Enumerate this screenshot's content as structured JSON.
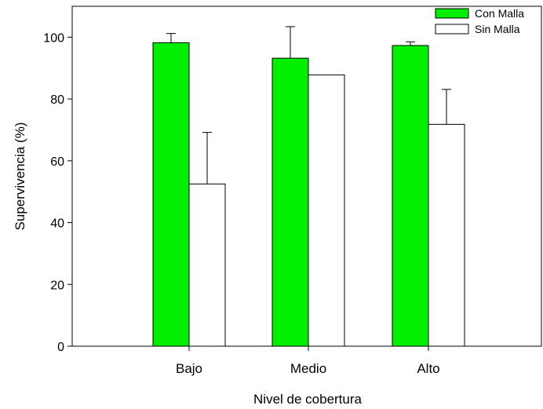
{
  "chart_data": {
    "type": "bar",
    "title": "",
    "xlabel": "Nivel de cobertura",
    "ylabel": "Supervivencia (%)",
    "categories": [
      "Bajo",
      "Medio",
      "Alto"
    ],
    "ylim": [
      0,
      110
    ],
    "yticks": [
      0,
      20,
      40,
      60,
      80,
      100
    ],
    "grid": false,
    "legend_position": "top-right",
    "series": [
      {
        "name": "Con Malla",
        "color": "#00ee00",
        "values": [
          98.2,
          93.2,
          97.3
        ],
        "error": [
          3.0,
          10.2,
          1.2
        ]
      },
      {
        "name": "Sin Malla",
        "color": "#ffffff",
        "values": [
          52.5,
          87.8,
          71.8
        ],
        "error": [
          16.7,
          0,
          11.3
        ]
      }
    ]
  }
}
